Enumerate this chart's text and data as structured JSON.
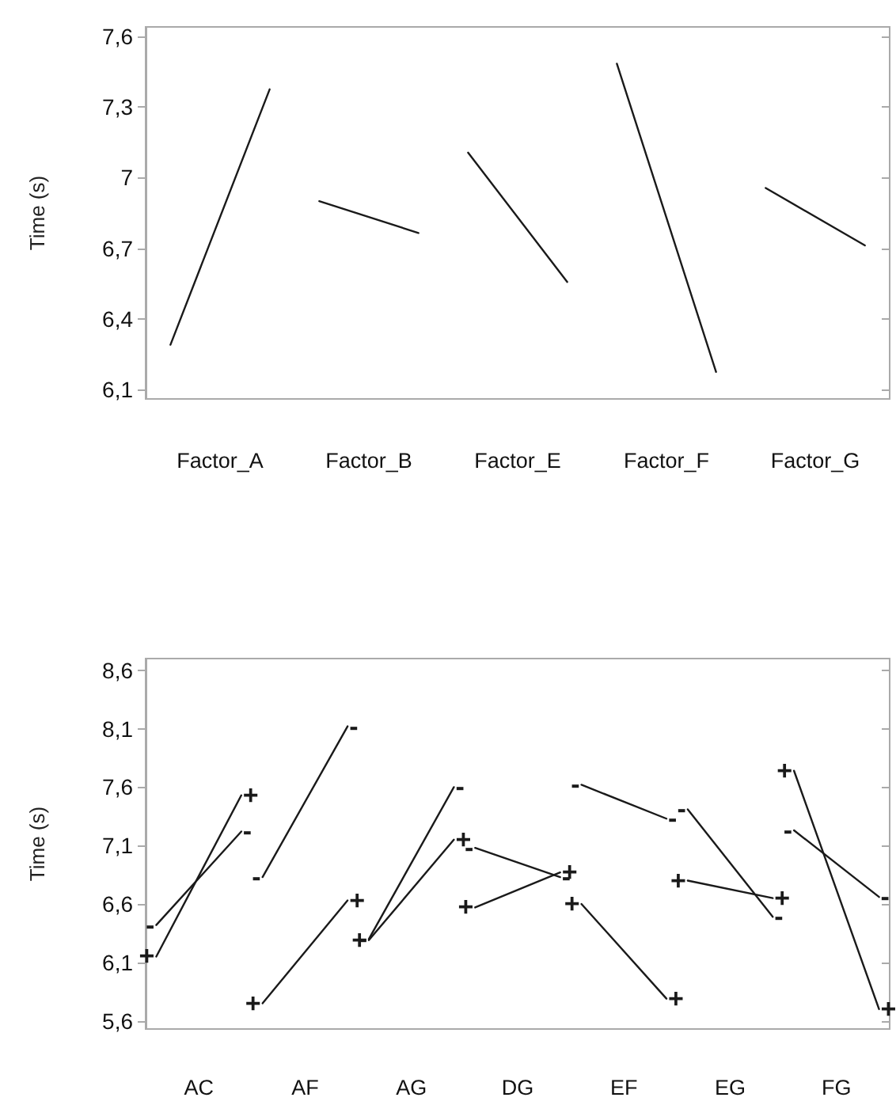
{
  "chart_data": [
    {
      "type": "line",
      "ylabel": "Time (s)",
      "categories": [
        null,
        "Factor_A",
        null,
        null,
        "Factor_B",
        null,
        null,
        "Factor_E",
        null,
        null,
        "Factor_F",
        null,
        null,
        "Factor_G",
        null
      ],
      "ylim": [
        6.06,
        7.64
      ],
      "yticks": [
        {
          "value": 6.1,
          "label": "6,1"
        },
        {
          "value": 6.4,
          "label": "6,4"
        },
        {
          "value": 6.7,
          "label": "6,7"
        },
        7,
        {
          "value": 7.3,
          "label": "7,3"
        },
        {
          "value": 7.6,
          "label": "7,6"
        }
      ],
      "grid": false,
      "marker": "none",
      "line_style": "solid",
      "series": [
        {
          "color": "#1a1a1a",
          "values": [
            6.29,
            null,
            7.375,
            null,
            null,
            null,
            null,
            null,
            null,
            null,
            null,
            null,
            null,
            null,
            null
          ]
        },
        {
          "color": "#1a1a1a",
          "values": [
            null,
            null,
            null,
            6.9,
            null,
            6.765,
            null,
            null,
            null,
            null,
            null,
            null,
            null,
            null,
            null
          ]
        },
        {
          "color": "#1a1a1a",
          "values": [
            null,
            null,
            null,
            null,
            null,
            null,
            7.106,
            null,
            6.557,
            null,
            null,
            null,
            null,
            null,
            null
          ]
        },
        {
          "color": "#1a1a1a",
          "values": [
            null,
            null,
            null,
            null,
            null,
            null,
            null,
            null,
            null,
            7.484,
            null,
            6.175,
            null,
            null,
            null
          ]
        },
        {
          "color": "#1a1a1a",
          "values": [
            null,
            null,
            null,
            null,
            null,
            null,
            null,
            null,
            null,
            null,
            null,
            null,
            6.956,
            null,
            6.712
          ]
        }
      ]
    },
    {
      "type": "line",
      "ylabel": "Time (s)",
      "categories": [
        null,
        null,
        "AC",
        null,
        null,
        null,
        null,
        "AF",
        null,
        null,
        null,
        null,
        "AG",
        null,
        null,
        null,
        null,
        "DG",
        null,
        null,
        null,
        null,
        "EF",
        null,
        null,
        null,
        null,
        "EG",
        null,
        null,
        null,
        null,
        "FG",
        null,
        null
      ],
      "ylim": [
        5.53,
        8.7
      ],
      "yticks": [
        {
          "value": 5.6,
          "label": "5,6"
        },
        {
          "value": 6.1,
          "label": "6,1"
        },
        {
          "value": 6.6,
          "label": "6,6"
        },
        {
          "value": 7.1,
          "label": "7,1"
        },
        {
          "value": 7.6,
          "label": "7,6"
        },
        {
          "value": 8.1,
          "label": "8,1"
        },
        {
          "value": 8.6,
          "label": "8,6"
        }
      ],
      "grid": false,
      "marker": "none",
      "line_style": "solid",
      "series": [
        {
          "name": "-",
          "color": "#1a1a1a",
          "values": [
            6.42,
            null,
            null,
            null,
            7.22,
            null,
            null,
            null,
            null,
            null,
            null,
            null,
            null,
            null,
            null,
            null,
            null,
            null,
            null,
            null,
            null,
            null,
            null,
            null,
            null,
            null,
            null,
            null,
            null,
            null,
            null,
            null,
            null,
            null,
            null
          ]
        },
        {
          "name": "+",
          "color": "#1a1a1a",
          "values": [
            6.15,
            null,
            null,
            null,
            7.53,
            null,
            null,
            null,
            null,
            null,
            null,
            null,
            null,
            null,
            null,
            null,
            null,
            null,
            null,
            null,
            null,
            null,
            null,
            null,
            null,
            null,
            null,
            null,
            null,
            null,
            null,
            null,
            null,
            null,
            null
          ]
        },
        {
          "name": "-",
          "color": "#1a1a1a",
          "values": [
            null,
            null,
            null,
            null,
            null,
            6.83,
            null,
            null,
            null,
            8.12,
            null,
            null,
            null,
            null,
            null,
            null,
            null,
            null,
            null,
            null,
            null,
            null,
            null,
            null,
            null,
            null,
            null,
            null,
            null,
            null,
            null,
            null,
            null,
            null,
            null
          ]
        },
        {
          "name": "+",
          "color": "#1a1a1a",
          "values": [
            null,
            null,
            null,
            null,
            null,
            5.75,
            null,
            null,
            null,
            6.63,
            null,
            null,
            null,
            null,
            null,
            null,
            null,
            null,
            null,
            null,
            null,
            null,
            null,
            null,
            null,
            null,
            null,
            null,
            null,
            null,
            null,
            null,
            null,
            null,
            null
          ]
        },
        {
          "name": "-",
          "color": "#1a1a1a",
          "values": [
            null,
            null,
            null,
            null,
            null,
            null,
            null,
            null,
            null,
            null,
            6.3,
            null,
            null,
            null,
            7.6,
            null,
            null,
            null,
            null,
            null,
            null,
            null,
            null,
            null,
            null,
            null,
            null,
            null,
            null,
            null,
            null,
            null,
            null,
            null,
            null
          ]
        },
        {
          "name": "+",
          "color": "#1a1a1a",
          "values": [
            null,
            null,
            null,
            null,
            null,
            null,
            null,
            null,
            null,
            null,
            6.29,
            null,
            null,
            null,
            7.15,
            null,
            null,
            null,
            null,
            null,
            null,
            null,
            null,
            null,
            null,
            null,
            null,
            null,
            null,
            null,
            null,
            null,
            null,
            null,
            null
          ]
        },
        {
          "name": "-",
          "color": "#1a1a1a",
          "values": [
            null,
            null,
            null,
            null,
            null,
            null,
            null,
            null,
            null,
            null,
            null,
            null,
            null,
            null,
            null,
            7.08,
            null,
            null,
            null,
            6.83,
            null,
            null,
            null,
            null,
            null,
            null,
            null,
            null,
            null,
            null,
            null,
            null,
            null,
            null,
            null
          ]
        },
        {
          "name": "+",
          "color": "#1a1a1a",
          "values": [
            null,
            null,
            null,
            null,
            null,
            null,
            null,
            null,
            null,
            null,
            null,
            null,
            null,
            null,
            null,
            6.57,
            null,
            null,
            null,
            6.87,
            null,
            null,
            null,
            null,
            null,
            null,
            null,
            null,
            null,
            null,
            null,
            null,
            null,
            null,
            null
          ]
        },
        {
          "name": "-",
          "color": "#1a1a1a",
          "values": [
            null,
            null,
            null,
            null,
            null,
            null,
            null,
            null,
            null,
            null,
            null,
            null,
            null,
            null,
            null,
            null,
            null,
            null,
            null,
            null,
            7.62,
            null,
            null,
            null,
            7.33,
            null,
            null,
            null,
            null,
            null,
            null,
            null,
            null,
            null,
            null
          ]
        },
        {
          "name": "+",
          "color": "#1a1a1a",
          "values": [
            null,
            null,
            null,
            null,
            null,
            null,
            null,
            null,
            null,
            null,
            null,
            null,
            null,
            null,
            null,
            null,
            null,
            null,
            null,
            null,
            6.6,
            null,
            null,
            null,
            5.79,
            null,
            null,
            null,
            null,
            null,
            null,
            null,
            null,
            null,
            null
          ]
        },
        {
          "name": "-",
          "color": "#1a1a1a",
          "values": [
            null,
            null,
            null,
            null,
            null,
            null,
            null,
            null,
            null,
            null,
            null,
            null,
            null,
            null,
            null,
            null,
            null,
            null,
            null,
            null,
            null,
            null,
            null,
            null,
            null,
            7.41,
            null,
            null,
            null,
            6.49,
            null,
            null,
            null,
            null,
            null
          ]
        },
        {
          "name": "+",
          "color": "#1a1a1a",
          "values": [
            null,
            null,
            null,
            null,
            null,
            null,
            null,
            null,
            null,
            null,
            null,
            null,
            null,
            null,
            null,
            null,
            null,
            null,
            null,
            null,
            null,
            null,
            null,
            null,
            null,
            6.8,
            null,
            null,
            null,
            6.65,
            null,
            null,
            null,
            null,
            null
          ]
        },
        {
          "name": "-",
          "color": "#1a1a1a",
          "values": [
            null,
            null,
            null,
            null,
            null,
            null,
            null,
            null,
            null,
            null,
            null,
            null,
            null,
            null,
            null,
            null,
            null,
            null,
            null,
            null,
            null,
            null,
            null,
            null,
            null,
            null,
            null,
            null,
            null,
            null,
            7.23,
            null,
            null,
            null,
            6.66
          ]
        },
        {
          "name": "+",
          "color": "#1a1a1a",
          "values": [
            null,
            null,
            null,
            null,
            null,
            null,
            null,
            null,
            null,
            null,
            null,
            null,
            null,
            null,
            null,
            null,
            null,
            null,
            null,
            null,
            null,
            null,
            null,
            null,
            null,
            null,
            null,
            null,
            null,
            null,
            7.74,
            null,
            null,
            null,
            5.7
          ]
        }
      ]
    }
  ]
}
